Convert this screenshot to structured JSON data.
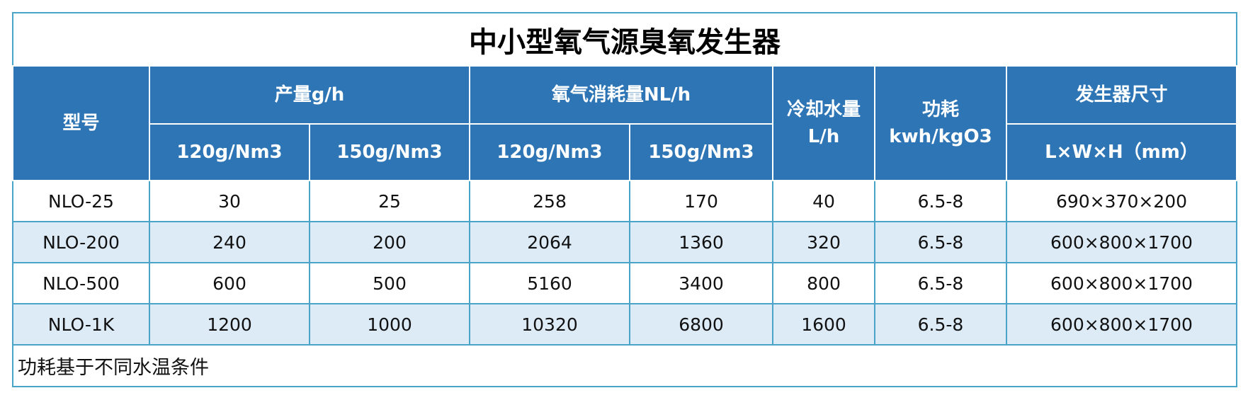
{
  "title": "中小型氧气源臭氧发生器",
  "header": {
    "model": "型号",
    "output": "产量g/h",
    "output_sub": [
      "120g/Nm3",
      "150g/Nm3"
    ],
    "oxygen": "氧气消耗量NL/h",
    "oxygen_sub": [
      "120g/Nm3",
      "150g/Nm3"
    ],
    "cooling": "冷却水量 L/h",
    "power": "功耗 kwh/kgO3",
    "size": "发生器尺寸",
    "size_sub": "L×W×H（mm）"
  },
  "rows": [
    [
      "NLO-25",
      30,
      25,
      258,
      170,
      40,
      "6.5-8",
      "690×370×200"
    ],
    [
      "NLO-200",
      240,
      200,
      2064,
      1360,
      320,
      "6.5-8",
      "600×800×1700"
    ],
    [
      "NLO-500",
      600,
      500,
      5160,
      3400,
      800,
      "6.5-8",
      "600×800×1700"
    ],
    [
      "NLO-1K",
      1200,
      1000,
      10320,
      6800,
      1600,
      "6.5-8",
      "600×800×1700"
    ]
  ],
  "note": "功耗基于不同水温条件"
}
